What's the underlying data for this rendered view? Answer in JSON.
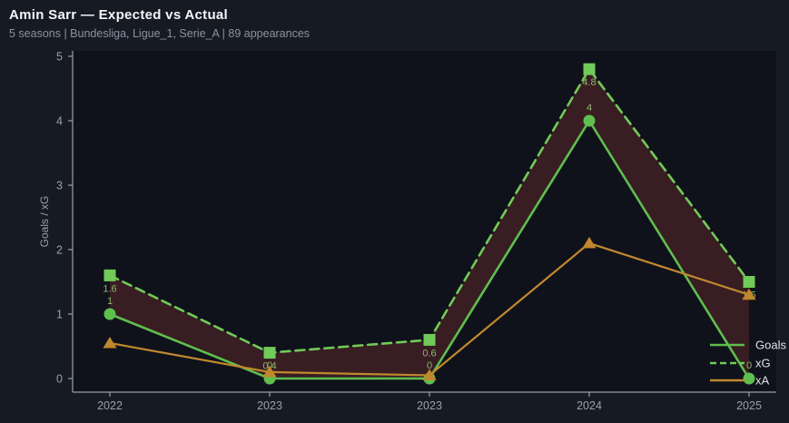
{
  "header": {
    "title": "Amin Sarr — Expected vs Actual",
    "subtitle": "5 seasons | Bundesliga, Ligue_1, Serie_A | 89 appearances"
  },
  "chart_data": {
    "type": "line",
    "title": "Amin Sarr — Expected vs Actual",
    "categories": [
      "2022",
      "2023",
      "2023",
      "2024",
      "2025"
    ],
    "series": [
      {
        "name": "Goals",
        "values": [
          1,
          0,
          0,
          4,
          0
        ],
        "point_labels": [
          "1",
          "0",
          "0",
          "4",
          "0"
        ],
        "label_position": "above",
        "color": "#5fbe4e",
        "marker": "circle",
        "line_style": "solid"
      },
      {
        "name": "xG",
        "values": [
          1.6,
          0.4,
          0.6,
          4.8,
          1.5
        ],
        "point_labels": [
          "1.6",
          "0.4",
          "0.6",
          "4.8",
          "1.5"
        ],
        "label_position": "below",
        "color": "#70cb58",
        "marker": "square",
        "line_style": "dashed"
      },
      {
        "name": "xA",
        "values": [
          0.55,
          0.1,
          0.05,
          2.1,
          1.3
        ],
        "point_labels": null,
        "label_position": null,
        "color": "#c0882e",
        "marker": "triangle",
        "line_style": "solid"
      }
    ],
    "fill_between": {
      "series": [
        "Goals",
        "xG"
      ],
      "color": "#8c3434",
      "opacity": 0.33
    },
    "xlabel": "",
    "ylabel": "Goals / xG",
    "ylim": [
      0,
      5
    ],
    "yticks": [
      "0",
      "1",
      "2",
      "3",
      "4",
      "5"
    ],
    "grid": false,
    "legend": {
      "position": "lower right",
      "entries": [
        "Goals",
        "xG",
        "xA"
      ]
    },
    "colors": {
      "figure_bg": "#161a23",
      "plot_bg": "#0f121a",
      "spine": "#9aa0a8",
      "tick_text": "#99a1ad",
      "point_label_text": "#8fb671",
      "legend_text": "#dce0e6",
      "title_text": "#f3f5f8",
      "subtitle_text": "#8b93a0"
    }
  }
}
